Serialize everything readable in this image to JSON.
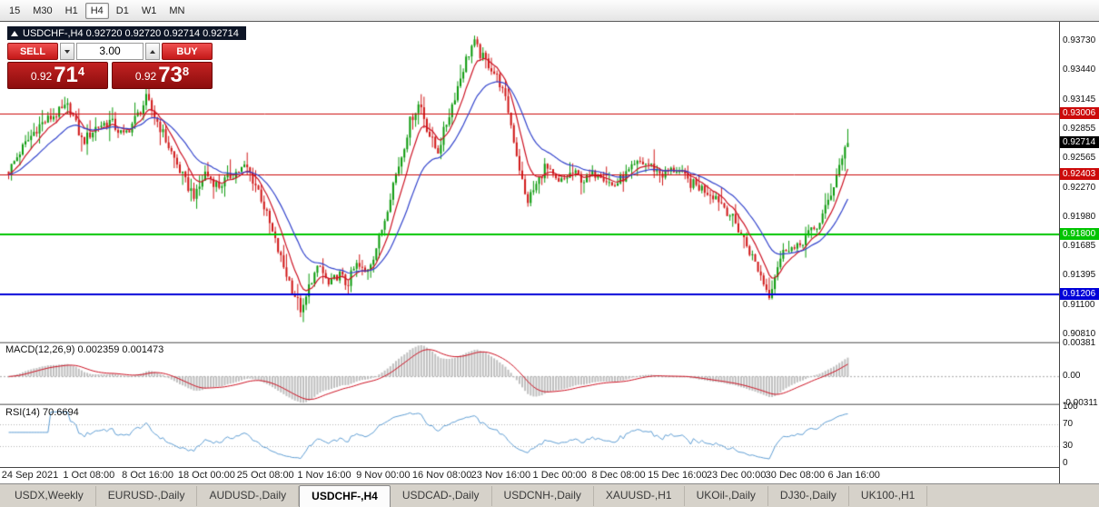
{
  "toolbar": {
    "timeframes": [
      "15",
      "M30",
      "H1",
      "H4",
      "D1",
      "W1",
      "MN"
    ],
    "active": "H4"
  },
  "chart_header": {
    "title": "USDCHF-,H4 0.92720 0.92720 0.92714 0.92714"
  },
  "trade_panel": {
    "sell_label": "SELL",
    "buy_label": "BUY",
    "volume": "3.00",
    "sell_quote": {
      "prefix": "0.92",
      "big": "71",
      "sup": "4"
    },
    "buy_quote": {
      "prefix": "0.92",
      "big": "73",
      "sup": "8"
    }
  },
  "bottom_tabs": {
    "items": [
      "USDX,Weekly",
      "EURUSD-,Daily",
      "AUDUSD-,Daily",
      "USDCHF-,H4",
      "USDCAD-,Daily",
      "USDCNH-,Daily",
      "XAUUSD-,H1",
      "UKOil-,Daily",
      "DJ30-,Daily",
      "UK100-,H1"
    ],
    "active": "USDCHF-,H4"
  },
  "colors": {
    "up_candle": "#0c9a0c",
    "down_candle": "#d01818",
    "ma_fast": "#cc1122",
    "ma_slow": "#3344cc",
    "macd_hist": "#bfbfbf",
    "macd_signal": "#cc1122",
    "rsi_line": "#5e9dd3",
    "current_price_bg": "#000000"
  },
  "chart_data": {
    "type": "candlestick",
    "symbol": "USDCHF-",
    "timeframe": "H4",
    "ohlc_current": {
      "open": "0.92720",
      "high": "0.92720",
      "low": "0.92714",
      "close": "0.92714"
    },
    "y_axis": {
      "max": 0.9373,
      "min": 0.9081,
      "ticks": [
        "0.93730",
        "0.93440",
        "0.93145",
        "0.92855",
        "0.92565",
        "0.92270",
        "0.91980",
        "0.91685",
        "0.91395",
        "0.91100",
        "0.90810"
      ]
    },
    "x_labels": [
      "24 Sep 2021",
      "1 Oct 08:00",
      "8 Oct 16:00",
      "18 Oct 00:00",
      "25 Oct 08:00",
      "1 Nov 16:00",
      "9 Nov 00:00",
      "16 Nov 08:00",
      "23 Nov 16:00",
      "1 Dec 00:00",
      "8 Dec 08:00",
      "15 Dec 16:00",
      "23 Dec 00:00",
      "30 Dec 08:00",
      "6 Jan 16:00"
    ],
    "hlines": [
      {
        "price": 0.93006,
        "label": "0.93006",
        "color": "#cc0a0a",
        "width": 1
      },
      {
        "price": 0.92403,
        "label": "0.92403",
        "color": "#cc0a0a",
        "width": 1
      },
      {
        "price": 0.918,
        "label": "0.91800",
        "color": "#00c400",
        "width": 2
      },
      {
        "price": 0.91206,
        "label": "0.91206",
        "color": "#0000d8",
        "width": 2
      }
    ],
    "current_price": {
      "value": 0.92714,
      "label": "0.92714"
    },
    "candle_count": 300,
    "ma_fast_period": 8,
    "ma_slow_period": 21,
    "price_path": [
      [
        0.0,
        0.9243
      ],
      [
        0.013,
        0.9262
      ],
      [
        0.035,
        0.9288
      ],
      [
        0.056,
        0.93
      ],
      [
        0.072,
        0.9308
      ],
      [
        0.088,
        0.9272
      ],
      [
        0.105,
        0.9288
      ],
      [
        0.121,
        0.9293
      ],
      [
        0.137,
        0.9278
      ],
      [
        0.153,
        0.9298
      ],
      [
        0.164,
        0.9315
      ],
      [
        0.18,
        0.9288
      ],
      [
        0.196,
        0.9258
      ],
      [
        0.212,
        0.923
      ],
      [
        0.223,
        0.9218
      ],
      [
        0.234,
        0.9242
      ],
      [
        0.25,
        0.9228
      ],
      [
        0.266,
        0.924
      ],
      [
        0.283,
        0.9248
      ],
      [
        0.299,
        0.9222
      ],
      [
        0.315,
        0.918
      ],
      [
        0.326,
        0.9152
      ],
      [
        0.337,
        0.9128
      ],
      [
        0.35,
        0.9102
      ],
      [
        0.36,
        0.9135
      ],
      [
        0.371,
        0.9148
      ],
      [
        0.382,
        0.9128
      ],
      [
        0.393,
        0.9142
      ],
      [
        0.403,
        0.913
      ],
      [
        0.414,
        0.915
      ],
      [
        0.425,
        0.9142
      ],
      [
        0.436,
        0.9162
      ],
      [
        0.447,
        0.9192
      ],
      [
        0.457,
        0.9228
      ],
      [
        0.468,
        0.9258
      ],
      [
        0.479,
        0.9295
      ],
      [
        0.49,
        0.9312
      ],
      [
        0.5,
        0.9282
      ],
      [
        0.511,
        0.9262
      ],
      [
        0.522,
        0.9292
      ],
      [
        0.533,
        0.9322
      ],
      [
        0.544,
        0.9352
      ],
      [
        0.554,
        0.9372
      ],
      [
        0.563,
        0.9358
      ],
      [
        0.574,
        0.9348
      ],
      [
        0.585,
        0.9332
      ],
      [
        0.595,
        0.9305
      ],
      [
        0.606,
        0.9258
      ],
      [
        0.617,
        0.9212
      ],
      [
        0.628,
        0.9228
      ],
      [
        0.639,
        0.9248
      ],
      [
        0.655,
        0.923
      ],
      [
        0.671,
        0.9242
      ],
      [
        0.687,
        0.9234
      ],
      [
        0.703,
        0.9244
      ],
      [
        0.72,
        0.9228
      ],
      [
        0.736,
        0.924
      ],
      [
        0.752,
        0.9252
      ],
      [
        0.763,
        0.925
      ],
      [
        0.779,
        0.924
      ],
      [
        0.795,
        0.9246
      ],
      [
        0.811,
        0.9232
      ],
      [
        0.827,
        0.9226
      ],
      [
        0.844,
        0.9218
      ],
      [
        0.86,
        0.92
      ],
      [
        0.876,
        0.9176
      ],
      [
        0.892,
        0.9148
      ],
      [
        0.906,
        0.912
      ],
      [
        0.917,
        0.9152
      ],
      [
        0.928,
        0.917
      ],
      [
        0.938,
        0.9164
      ],
      [
        0.951,
        0.918
      ],
      [
        0.962,
        0.9186
      ],
      [
        0.973,
        0.9205
      ],
      [
        0.984,
        0.9232
      ],
      [
        0.993,
        0.9258
      ],
      [
        1.0,
        0.92714
      ]
    ],
    "indicators": {
      "macd": {
        "label": "MACD(12,26,9) 0.002359 0.001473",
        "fast": 12,
        "slow": 26,
        "signal": 9,
        "value": 0.002359,
        "signal_value": 0.001473,
        "axis": [
          {
            "label": "0.00381",
            "value": 0.00381
          },
          {
            "label": "0.00",
            "value": 0
          },
          {
            "label": "-0.00311",
            "value": -0.00311
          }
        ]
      },
      "rsi": {
        "label": "RSI(14) 70.6694",
        "period": 14,
        "value": 70.6694,
        "levels": [
          70,
          30
        ],
        "axis": [
          {
            "label": "100",
            "value": 100
          },
          {
            "label": "70",
            "value": 70
          },
          {
            "label": "30",
            "value": 30
          },
          {
            "label": "0",
            "value": 0
          }
        ]
      }
    }
  }
}
